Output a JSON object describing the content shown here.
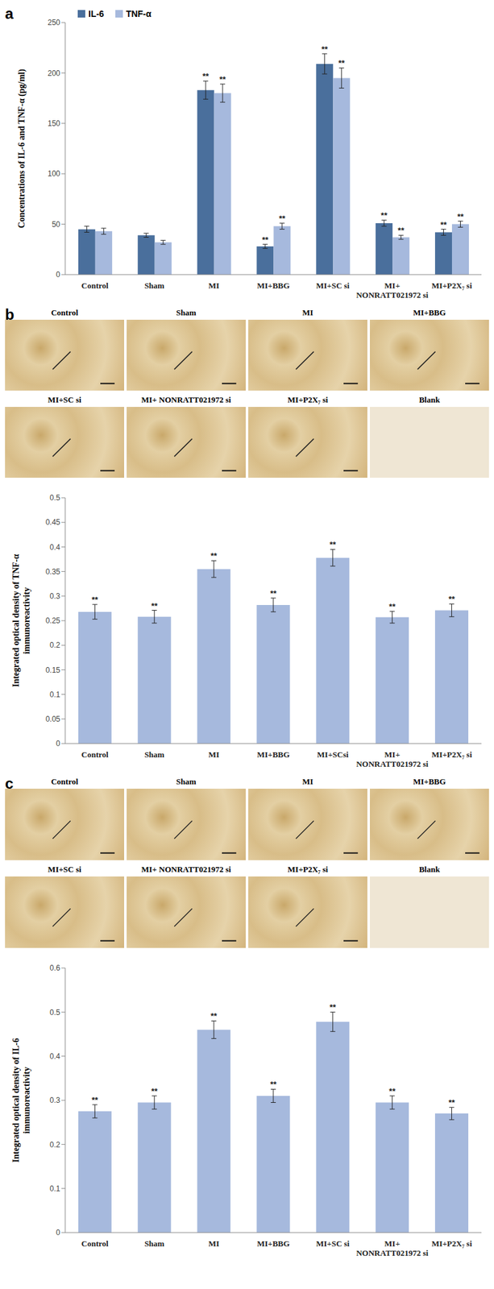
{
  "panels": [
    {
      "label": "a"
    },
    {
      "label": "b",
      "images": [
        "Control",
        "Sham",
        "MI",
        "MI+BBG",
        "MI+SC si",
        "MI+ NONRATT021972 si",
        "MI+P2X₇ si",
        "Blank"
      ]
    },
    {
      "label": "c",
      "images": [
        "Control",
        "Sham",
        "MI",
        "MI+BBG",
        "MI+SC si",
        "MI+ NONRATT021972 si",
        "MI+P2X₇ si",
        "Blank"
      ]
    }
  ],
  "chart_data": [
    {
      "type": "bar",
      "categories": [
        "Control",
        "Sham",
        "MI",
        "MI+BBG",
        "MI+SC si",
        "MI+ NONRATT021972 si",
        "MI+P2X₇ si"
      ],
      "y_label": "Concentrations of IL-6 and TNF-α (pg/ml)",
      "ylim": [
        0,
        250
      ],
      "yticks": [
        0,
        50,
        100,
        150,
        200,
        250
      ],
      "legend": "upper left",
      "series": [
        {
          "name": "IL-6",
          "color": "#4a6f9c",
          "values": [
            45,
            39,
            183,
            28,
            209,
            51,
            42
          ],
          "errors": [
            3,
            2,
            9,
            2,
            10,
            3,
            3
          ],
          "annotations": [
            null,
            null,
            "**",
            "**",
            "**",
            "**",
            "**"
          ]
        },
        {
          "name": "TNF-α",
          "color": "#a6b9dd",
          "values": [
            43,
            32,
            180,
            48,
            195,
            37,
            50
          ],
          "errors": [
            3,
            2,
            9,
            3,
            10,
            2,
            3
          ],
          "annotations": [
            null,
            null,
            "**",
            "**",
            "**",
            "**",
            "**"
          ]
        }
      ]
    },
    {
      "type": "bar",
      "categories": [
        "Control",
        "Sham",
        "MI",
        "MI+BBG",
        "MI+SCsi",
        "MI+ NONRATT021972 si",
        "MI+P2X₇ si"
      ],
      "y_label": "Integrated optical density of TNF-α immunoreactivity",
      "ylim": [
        0,
        0.5
      ],
      "yticks": [
        0,
        0.05,
        0.1,
        0.15,
        0.2,
        0.25,
        0.3,
        0.35,
        0.4,
        0.45,
        0.5
      ],
      "color": "#a6b9dd",
      "values": [
        0.268,
        0.258,
        0.355,
        0.282,
        0.378,
        0.257,
        0.271
      ],
      "errors": [
        0.015,
        0.013,
        0.017,
        0.014,
        0.017,
        0.012,
        0.013
      ],
      "annotations": [
        "**",
        "**",
        "**",
        "**",
        "**",
        "**",
        "**"
      ]
    },
    {
      "type": "bar",
      "categories": [
        "Control",
        "Sham",
        "MI",
        "MI+BBG",
        "MI+SC si",
        "MI+ NONRATT021972 si",
        "MI+P2X₇ si"
      ],
      "y_label": "Integrated optical density of IL-6 immunoreactivity",
      "ylim": [
        0,
        0.6
      ],
      "yticks": [
        0,
        0.1,
        0.2,
        0.3,
        0.4,
        0.5,
        0.6
      ],
      "color": "#a6b9dd",
      "values": [
        0.275,
        0.295,
        0.46,
        0.31,
        0.478,
        0.295,
        0.27
      ],
      "errors": [
        0.015,
        0.015,
        0.02,
        0.015,
        0.022,
        0.015,
        0.014
      ],
      "annotations": [
        "**",
        "**",
        "**",
        "**",
        "**",
        "**",
        "**"
      ]
    }
  ]
}
